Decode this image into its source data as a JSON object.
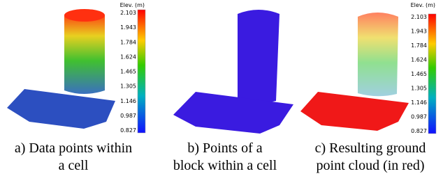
{
  "panels": [
    {
      "caption": [
        "a) Data points within",
        "a cell"
      ],
      "colorbar": {
        "title": "Elev. (m)",
        "ticks": [
          "2.103",
          "1.943",
          "1.784",
          "1.624",
          "1.465",
          "1.305",
          "1.146",
          "0.987",
          "0.827"
        ]
      }
    },
    {
      "caption": [
        "b) Points of a",
        "block within a cell"
      ]
    },
    {
      "caption": [
        "c) Resulting ground",
        "point cloud (in red)"
      ],
      "colorbar": {
        "title": "Elev. (m)",
        "ticks": [
          "2.103",
          "1.943",
          "1.784",
          "1.624",
          "1.465",
          "1.305",
          "1.146",
          "0.987",
          "0.827"
        ]
      }
    }
  ]
}
